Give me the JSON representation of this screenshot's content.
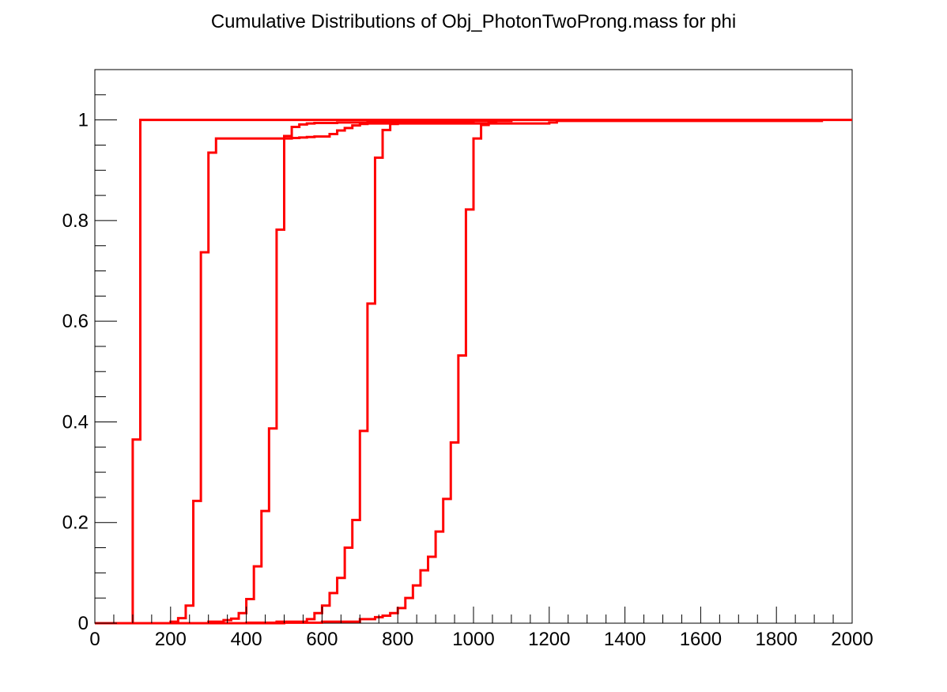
{
  "chart_data": {
    "type": "line",
    "title": "Cumulative Distributions of Obj_PhotonTwoProng.mass for phi",
    "xlabel": "",
    "ylabel": "",
    "xlim": [
      0,
      2000
    ],
    "ylim": [
      0,
      1.1
    ],
    "grid": false,
    "line_color": "#ff0000",
    "x_ticks": [
      0,
      200,
      400,
      600,
      800,
      1000,
      1200,
      1400,
      1600,
      1800,
      2000
    ],
    "x_tick_labels": [
      "0",
      "200",
      "400",
      "600",
      "800",
      "1000",
      "1200",
      "1400",
      "1600",
      "1800",
      "2000"
    ],
    "y_ticks": [
      0,
      0.2,
      0.4,
      0.6,
      0.8,
      1
    ],
    "y_tick_labels": [
      "0",
      "0.2",
      "0.4",
      "0.6",
      "0.8",
      "1"
    ],
    "series": [
      {
        "x": [
          0,
          100,
          120,
          2000
        ],
        "values": [
          0,
          0.365,
          1.0,
          1.0
        ]
      },
      {
        "x": [
          0,
          200,
          220,
          240,
          260,
          280,
          300,
          320,
          500,
          520,
          540,
          560,
          580,
          600,
          620,
          640,
          660,
          680,
          700,
          720,
          1200,
          1220,
          1920
        ],
        "values": [
          0,
          0.003,
          0.01,
          0.035,
          0.243,
          0.737,
          0.935,
          0.963,
          0.963,
          0.964,
          0.965,
          0.966,
          0.967,
          0.967,
          0.972,
          0.979,
          0.984,
          0.989,
          0.992,
          0.993,
          0.995,
          0.998,
          1.0
        ]
      },
      {
        "x": [
          0,
          300,
          340,
          360,
          380,
          400,
          420,
          440,
          460,
          480,
          500,
          520,
          540,
          560,
          580,
          600,
          640,
          680,
          720,
          760,
          800,
          940,
          960,
          980
        ],
        "values": [
          0,
          0.003,
          0.006,
          0.009,
          0.02,
          0.048,
          0.113,
          0.223,
          0.387,
          0.782,
          0.968,
          0.986,
          0.991,
          0.993,
          0.994,
          0.994,
          0.995,
          0.995,
          0.996,
          0.996,
          0.997,
          0.997,
          0.998,
          0.998
        ]
      },
      {
        "x": [
          0,
          400,
          480,
          560,
          580,
          600,
          620,
          640,
          660,
          680,
          700,
          720,
          740,
          760,
          780,
          800,
          900,
          1000,
          1050
        ],
        "values": [
          0,
          0.001,
          0.003,
          0.008,
          0.02,
          0.035,
          0.06,
          0.09,
          0.15,
          0.205,
          0.382,
          0.635,
          0.925,
          0.98,
          0.992,
          0.995,
          0.997,
          0.998,
          1.0
        ]
      },
      {
        "x": [
          0,
          500,
          600,
          700,
          740,
          760,
          780,
          800,
          820,
          840,
          860,
          880,
          900,
          920,
          940,
          960,
          980,
          1000,
          1020,
          1040,
          1060,
          1100
        ],
        "values": [
          0,
          0.001,
          0.003,
          0.008,
          0.012,
          0.015,
          0.02,
          0.03,
          0.05,
          0.075,
          0.105,
          0.132,
          0.182,
          0.247,
          0.359,
          0.532,
          0.822,
          0.963,
          0.99,
          0.996,
          0.998,
          1.0
        ]
      }
    ]
  }
}
